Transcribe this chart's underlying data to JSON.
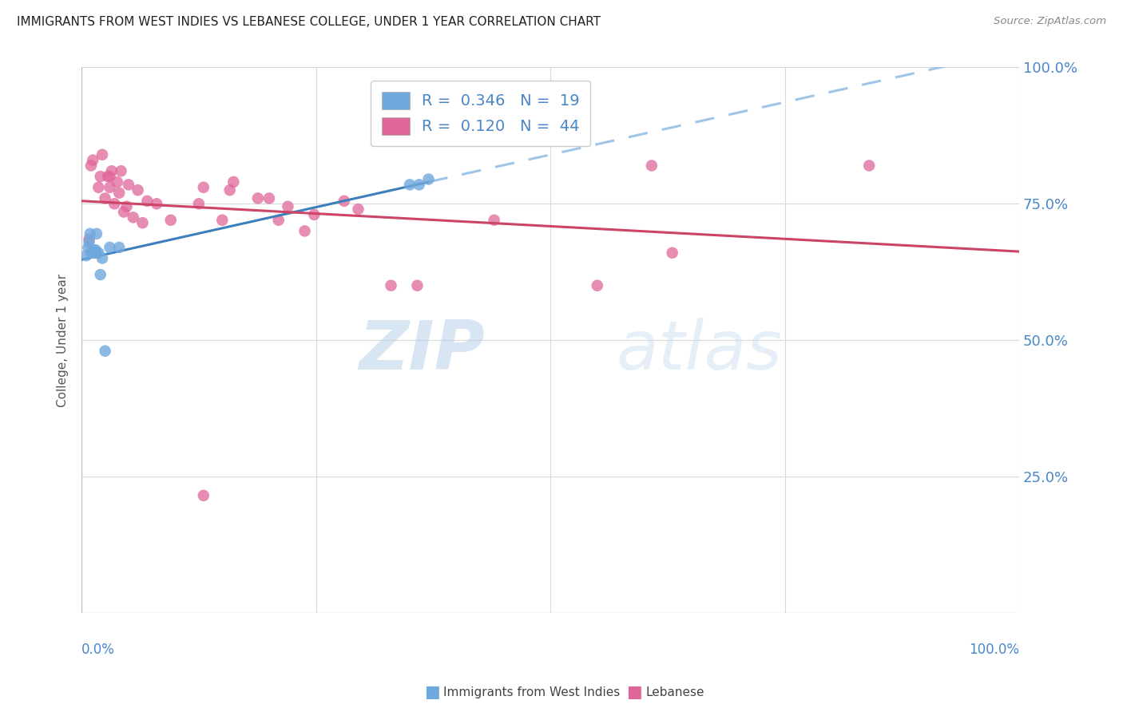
{
  "title": "IMMIGRANTS FROM WEST INDIES VS LEBANESE COLLEGE, UNDER 1 YEAR CORRELATION CHART",
  "source": "Source: ZipAtlas.com",
  "ylabel": "College, Under 1 year",
  "watermark_zip": "ZIP",
  "watermark_atlas": "atlas",
  "r_wi": 0.346,
  "n_wi": 19,
  "r_lb": 0.12,
  "n_lb": 44,
  "background_color": "#ffffff",
  "blue_dot_color": "#6fa8dc",
  "pink_dot_color": "#e06699",
  "blue_line_color": "#3d7ebd",
  "pink_line_color": "#cc4466",
  "dashed_line_color": "#9fc5e8",
  "title_color": "#212121",
  "source_color": "#888888",
  "axis_label_color": "#4a86c8",
  "grid_color": "#d9d9d9",
  "ylabel_color": "#555555",
  "wi_x": [
    0.005,
    0.007,
    0.008,
    0.009,
    0.01,
    0.012,
    0.013,
    0.015,
    0.015,
    0.016,
    0.018,
    0.02,
    0.022,
    0.025,
    0.03,
    0.04,
    0.35,
    0.36,
    0.37
  ],
  "wi_y": [
    0.655,
    0.67,
    0.68,
    0.695,
    0.66,
    0.66,
    0.665,
    0.66,
    0.665,
    0.695,
    0.66,
    0.62,
    0.65,
    0.48,
    0.67,
    0.67,
    0.785,
    0.785,
    0.795
  ],
  "lb_x": [
    0.008,
    0.01,
    0.012,
    0.018,
    0.02,
    0.022,
    0.025,
    0.028,
    0.03,
    0.03,
    0.032,
    0.035,
    0.038,
    0.04,
    0.042,
    0.045,
    0.048,
    0.05,
    0.055,
    0.06,
    0.065,
    0.07,
    0.08,
    0.095,
    0.125,
    0.13,
    0.15,
    0.158,
    0.162,
    0.188,
    0.2,
    0.21,
    0.22,
    0.238,
    0.248,
    0.28,
    0.295,
    0.33,
    0.358,
    0.44,
    0.55,
    0.608,
    0.63,
    0.84
  ],
  "lb_y": [
    0.685,
    0.82,
    0.83,
    0.78,
    0.8,
    0.84,
    0.76,
    0.8,
    0.78,
    0.8,
    0.81,
    0.75,
    0.79,
    0.77,
    0.81,
    0.735,
    0.745,
    0.785,
    0.725,
    0.775,
    0.715,
    0.755,
    0.75,
    0.72,
    0.75,
    0.78,
    0.72,
    0.775,
    0.79,
    0.76,
    0.76,
    0.72,
    0.745,
    0.7,
    0.73,
    0.755,
    0.74,
    0.6,
    0.6,
    0.72,
    0.6,
    0.82,
    0.66,
    0.82
  ],
  "lb_outlier_x": [
    0.13
  ],
  "lb_outlier_y": [
    0.215
  ],
  "xlim": [
    0.0,
    1.0
  ],
  "ylim": [
    0.0,
    1.0
  ],
  "xticks": [
    0.0,
    0.25,
    0.5,
    0.75,
    1.0
  ],
  "yticks": [
    0.0,
    0.25,
    0.5,
    0.75,
    1.0
  ],
  "right_ytick_labels": [
    "25.0%",
    "50.0%",
    "75.0%",
    "100.0%"
  ],
  "right_ytick_vals": [
    0.25,
    0.5,
    0.75,
    1.0
  ]
}
